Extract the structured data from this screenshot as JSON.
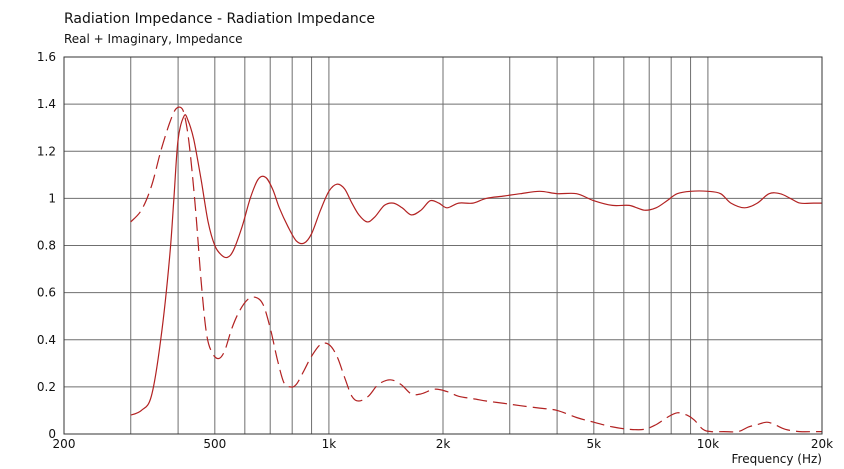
{
  "chart_data": {
    "type": "line",
    "title": "Radiation Impedance - Radiation Impedance",
    "subtitle": "Real + Imaginary, Impedance",
    "xlabel": "Frequency  (Hz)",
    "ylabel": "",
    "xscale": "log",
    "xlim": [
      200,
      20000
    ],
    "ylim": [
      0,
      1.6
    ],
    "grid": true,
    "x_ticks": [
      {
        "value": 200,
        "label": "200"
      },
      {
        "value": 500,
        "label": "500"
      },
      {
        "value": 1000,
        "label": "1k"
      },
      {
        "value": 2000,
        "label": "2k"
      },
      {
        "value": 5000,
        "label": "5k"
      },
      {
        "value": 10000,
        "label": "10k"
      },
      {
        "value": 20000,
        "label": "20k"
      }
    ],
    "x_grid": [
      300,
      400,
      500,
      600,
      700,
      800,
      900,
      1000,
      2000,
      3000,
      4000,
      5000,
      6000,
      7000,
      8000,
      9000,
      10000
    ],
    "y_ticks": [
      {
        "value": 0,
        "label": "0"
      },
      {
        "value": 0.2,
        "label": "0.2"
      },
      {
        "value": 0.4,
        "label": "0.4"
      },
      {
        "value": 0.6,
        "label": "0.6"
      },
      {
        "value": 0.8,
        "label": "0.8"
      },
      {
        "value": 1.0,
        "label": "1"
      },
      {
        "value": 1.2,
        "label": "1.2"
      },
      {
        "value": 1.4,
        "label": "1.4"
      },
      {
        "value": 1.6,
        "label": "1.6"
      }
    ],
    "series": [
      {
        "color": "#b22222",
        "dash": "solid",
        "points": [
          [
            300,
            0.08
          ],
          [
            320,
            0.1
          ],
          [
            340,
            0.16
          ],
          [
            360,
            0.4
          ],
          [
            380,
            0.75
          ],
          [
            390,
            1.0
          ],
          [
            400,
            1.25
          ],
          [
            415,
            1.35
          ],
          [
            425,
            1.33
          ],
          [
            440,
            1.25
          ],
          [
            460,
            1.08
          ],
          [
            480,
            0.9
          ],
          [
            500,
            0.8
          ],
          [
            520,
            0.76
          ],
          [
            540,
            0.75
          ],
          [
            560,
            0.78
          ],
          [
            590,
            0.88
          ],
          [
            620,
            1.0
          ],
          [
            650,
            1.08
          ],
          [
            680,
            1.09
          ],
          [
            710,
            1.04
          ],
          [
            740,
            0.96
          ],
          [
            780,
            0.88
          ],
          [
            820,
            0.82
          ],
          [
            860,
            0.81
          ],
          [
            900,
            0.85
          ],
          [
            950,
            0.95
          ],
          [
            1000,
            1.03
          ],
          [
            1050,
            1.06
          ],
          [
            1100,
            1.04
          ],
          [
            1150,
            0.98
          ],
          [
            1200,
            0.93
          ],
          [
            1260,
            0.9
          ],
          [
            1320,
            0.92
          ],
          [
            1400,
            0.97
          ],
          [
            1480,
            0.98
          ],
          [
            1560,
            0.96
          ],
          [
            1650,
            0.93
          ],
          [
            1750,
            0.95
          ],
          [
            1850,
            0.99
          ],
          [
            1950,
            0.98
          ],
          [
            2050,
            0.96
          ],
          [
            2200,
            0.98
          ],
          [
            2400,
            0.98
          ],
          [
            2600,
            1.0
          ],
          [
            2900,
            1.01
          ],
          [
            3200,
            1.02
          ],
          [
            3600,
            1.03
          ],
          [
            4000,
            1.02
          ],
          [
            4500,
            1.02
          ],
          [
            5000,
            0.99
          ],
          [
            5600,
            0.97
          ],
          [
            6200,
            0.97
          ],
          [
            6800,
            0.95
          ],
          [
            7300,
            0.96
          ],
          [
            7800,
            0.99
          ],
          [
            8300,
            1.02
          ],
          [
            9000,
            1.03
          ],
          [
            10000,
            1.03
          ],
          [
            10800,
            1.02
          ],
          [
            11500,
            0.98
          ],
          [
            12500,
            0.96
          ],
          [
            13500,
            0.98
          ],
          [
            14500,
            1.02
          ],
          [
            15500,
            1.02
          ],
          [
            16500,
            1.0
          ],
          [
            17500,
            0.98
          ],
          [
            19000,
            0.98
          ],
          [
            20000,
            0.98
          ]
        ]
      },
      {
        "color": "#b22222",
        "dash": "dashed",
        "points": [
          [
            300,
            0.9
          ],
          [
            320,
            0.95
          ],
          [
            340,
            1.05
          ],
          [
            360,
            1.2
          ],
          [
            380,
            1.32
          ],
          [
            395,
            1.38
          ],
          [
            410,
            1.38
          ],
          [
            420,
            1.32
          ],
          [
            430,
            1.2
          ],
          [
            445,
            0.95
          ],
          [
            460,
            0.65
          ],
          [
            475,
            0.43
          ],
          [
            490,
            0.35
          ],
          [
            510,
            0.32
          ],
          [
            530,
            0.35
          ],
          [
            555,
            0.45
          ],
          [
            580,
            0.52
          ],
          [
            610,
            0.57
          ],
          [
            640,
            0.58
          ],
          [
            670,
            0.55
          ],
          [
            700,
            0.45
          ],
          [
            730,
            0.32
          ],
          [
            760,
            0.22
          ],
          [
            790,
            0.2
          ],
          [
            820,
            0.21
          ],
          [
            860,
            0.27
          ],
          [
            900,
            0.33
          ],
          [
            950,
            0.38
          ],
          [
            1000,
            0.38
          ],
          [
            1050,
            0.33
          ],
          [
            1100,
            0.24
          ],
          [
            1150,
            0.16
          ],
          [
            1200,
            0.14
          ],
          [
            1270,
            0.16
          ],
          [
            1350,
            0.21
          ],
          [
            1450,
            0.23
          ],
          [
            1550,
            0.21
          ],
          [
            1650,
            0.17
          ],
          [
            1750,
            0.17
          ],
          [
            1900,
            0.19
          ],
          [
            2050,
            0.18
          ],
          [
            2200,
            0.16
          ],
          [
            2400,
            0.15
          ],
          [
            2600,
            0.14
          ],
          [
            2900,
            0.13
          ],
          [
            3200,
            0.12
          ],
          [
            3600,
            0.11
          ],
          [
            4000,
            0.1
          ],
          [
            4500,
            0.07
          ],
          [
            5000,
            0.05
          ],
          [
            5600,
            0.03
          ],
          [
            6200,
            0.02
          ],
          [
            6800,
            0.02
          ],
          [
            7300,
            0.04
          ],
          [
            7800,
            0.07
          ],
          [
            8300,
            0.09
          ],
          [
            8800,
            0.08
          ],
          [
            9200,
            0.06
          ],
          [
            9700,
            0.02
          ],
          [
            10200,
            0.01
          ],
          [
            11000,
            0.01
          ],
          [
            12000,
            0.01
          ],
          [
            12800,
            0.03
          ],
          [
            13500,
            0.04
          ],
          [
            14300,
            0.05
          ],
          [
            15000,
            0.04
          ],
          [
            16000,
            0.02
          ],
          [
            17500,
            0.01
          ],
          [
            19000,
            0.01
          ],
          [
            20000,
            0.01
          ]
        ]
      }
    ]
  }
}
